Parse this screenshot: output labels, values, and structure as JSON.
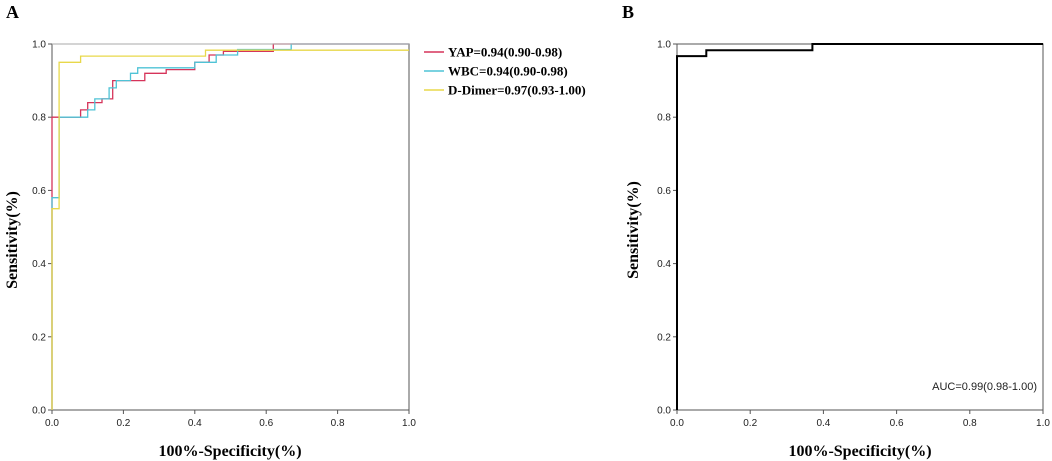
{
  "chart_data": [
    {
      "type": "line",
      "panel_label": "A",
      "xlabel": "100%-Specificity(%)",
      "ylabel": "Sensitivity(%)",
      "xlim": [
        0,
        1
      ],
      "ylim": [
        0,
        1
      ],
      "xticks": [
        "0.0",
        "0.2",
        "0.4",
        "0.6",
        "0.8",
        "1.0"
      ],
      "yticks": [
        "0.0",
        "0.2",
        "0.4",
        "0.6",
        "0.8",
        "1.0"
      ],
      "legend_position": "top-right",
      "series": [
        {
          "name": "YAP=0.94(0.90-0.98)",
          "color": "#d6345a",
          "x": [
            0,
            0,
            0.08,
            0.08,
            0.1,
            0.1,
            0.14,
            0.14,
            0.17,
            0.17,
            0.2,
            0.2,
            0.26,
            0.26,
            0.32,
            0.32,
            0.4,
            0.4,
            0.44,
            0.44,
            0.48,
            0.48,
            0.52,
            0.52,
            0.62,
            0.62,
            1.0
          ],
          "y": [
            0,
            0.8,
            0.8,
            0.82,
            0.82,
            0.84,
            0.84,
            0.85,
            0.85,
            0.9,
            0.9,
            0.9,
            0.9,
            0.92,
            0.92,
            0.93,
            0.93,
            0.95,
            0.95,
            0.97,
            0.97,
            0.98,
            0.98,
            0.98,
            0.98,
            1.0,
            1.0
          ]
        },
        {
          "name": "WBC=0.94(0.90-0.98)",
          "color": "#4fc3d6",
          "x": [
            0,
            0,
            0.02,
            0.02,
            0.1,
            0.1,
            0.12,
            0.12,
            0.16,
            0.16,
            0.18,
            0.18,
            0.22,
            0.22,
            0.24,
            0.24,
            0.4,
            0.4,
            0.46,
            0.46,
            0.52,
            0.52,
            0.67,
            0.67,
            1.0
          ],
          "y": [
            0,
            0.58,
            0.58,
            0.8,
            0.8,
            0.82,
            0.82,
            0.85,
            0.85,
            0.88,
            0.88,
            0.9,
            0.9,
            0.92,
            0.92,
            0.935,
            0.935,
            0.95,
            0.95,
            0.97,
            0.97,
            0.985,
            0.985,
            1.0,
            1.0
          ]
        },
        {
          "name": "D-Dimer=0.97(0.93-1.00)",
          "color": "#e8d84a",
          "x": [
            0,
            0,
            0.02,
            0.02,
            0.08,
            0.08,
            0.43,
            0.43,
            1.0
          ],
          "y": [
            0,
            0.55,
            0.55,
            0.95,
            0.95,
            0.967,
            0.967,
            0.983,
            0.983
          ]
        },
        {
          "name": "",
          "color": "#aaaaaa",
          "x": [
            0,
            1
          ],
          "y": [
            1,
            1
          ]
        }
      ]
    },
    {
      "type": "line",
      "panel_label": "B",
      "xlabel": "100%-Specificity(%)",
      "ylabel": "Sensitivity(%)",
      "xlim": [
        0,
        1
      ],
      "ylim": [
        0,
        1
      ],
      "xticks": [
        "0.0",
        "0.2",
        "0.4",
        "0.6",
        "0.8",
        "1.0"
      ],
      "yticks": [
        "0.0",
        "0.2",
        "0.4",
        "0.6",
        "0.8",
        "1.0"
      ],
      "annotation": "AUC=0.99(0.98-1.00)",
      "series": [
        {
          "name": "",
          "color": "#000000",
          "x": [
            0,
            0,
            0.08,
            0.08,
            0.37,
            0.37,
            1.0
          ],
          "y": [
            0,
            0.967,
            0.967,
            0.983,
            0.983,
            1.0,
            1.0
          ]
        }
      ]
    }
  ]
}
